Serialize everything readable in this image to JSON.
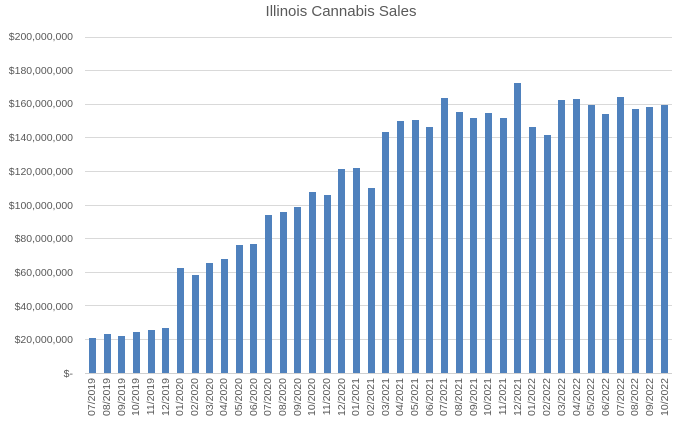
{
  "chart_data": {
    "type": "bar",
    "title": "Illinois Cannabis Sales",
    "xlabel": "",
    "ylabel": "",
    "ylim": [
      0,
      200000000
    ],
    "grid": true,
    "legend": false,
    "y_tick_labels_top_to_bottom": [
      "$200,000,000",
      "$180,000,000",
      "$160,000,000",
      "$140,000,000",
      "$120,000,000",
      "$100,000,000",
      "$80,000,000",
      "$60,000,000",
      "$40,000,000",
      "$20,000,000",
      "$-"
    ],
    "categories": [
      "07/2019",
      "08/2019",
      "09/2019",
      "10/2019",
      "11/2019",
      "12/2019",
      "01/2020",
      "02/2020",
      "03/2020",
      "04/2020",
      "05/2020",
      "06/2020",
      "07/2020",
      "08/2020",
      "09/2020",
      "10/2020",
      "11/2020",
      "12/2020",
      "01/2021",
      "02/2021",
      "03/2021",
      "04/2021",
      "05/2021",
      "06/2021",
      "07/2021",
      "08/2021",
      "09/2021",
      "10/2021",
      "11/2021",
      "12/2021",
      "01/2022",
      "02/2022",
      "03/2022",
      "04/2022",
      "05/2022",
      "06/2022",
      "07/2022",
      "08/2022",
      "09/2022",
      "10/2022"
    ],
    "values": [
      21000000,
      23300000,
      22000000,
      24400000,
      25600000,
      26900000,
      62300000,
      58600000,
      65300000,
      67600000,
      76000000,
      76700000,
      93900000,
      95900000,
      98700000,
      107900000,
      106100000,
      121400000,
      122100000,
      109900000,
      143500000,
      150000000,
      150600000,
      146500000,
      163500000,
      155200000,
      152000000,
      154900000,
      151500000,
      172500000,
      146300000,
      141400000,
      162300000,
      163200000,
      159400000,
      154400000,
      164100000,
      157200000,
      158200000,
      159800000
    ]
  },
  "colors": {
    "bar": "#4F81BD",
    "gridline": "#D9D9D9",
    "axis_line": "#D0D0D0",
    "axis_text": "#595959",
    "title_text": "#595959",
    "background": "#FFFFFF"
  }
}
